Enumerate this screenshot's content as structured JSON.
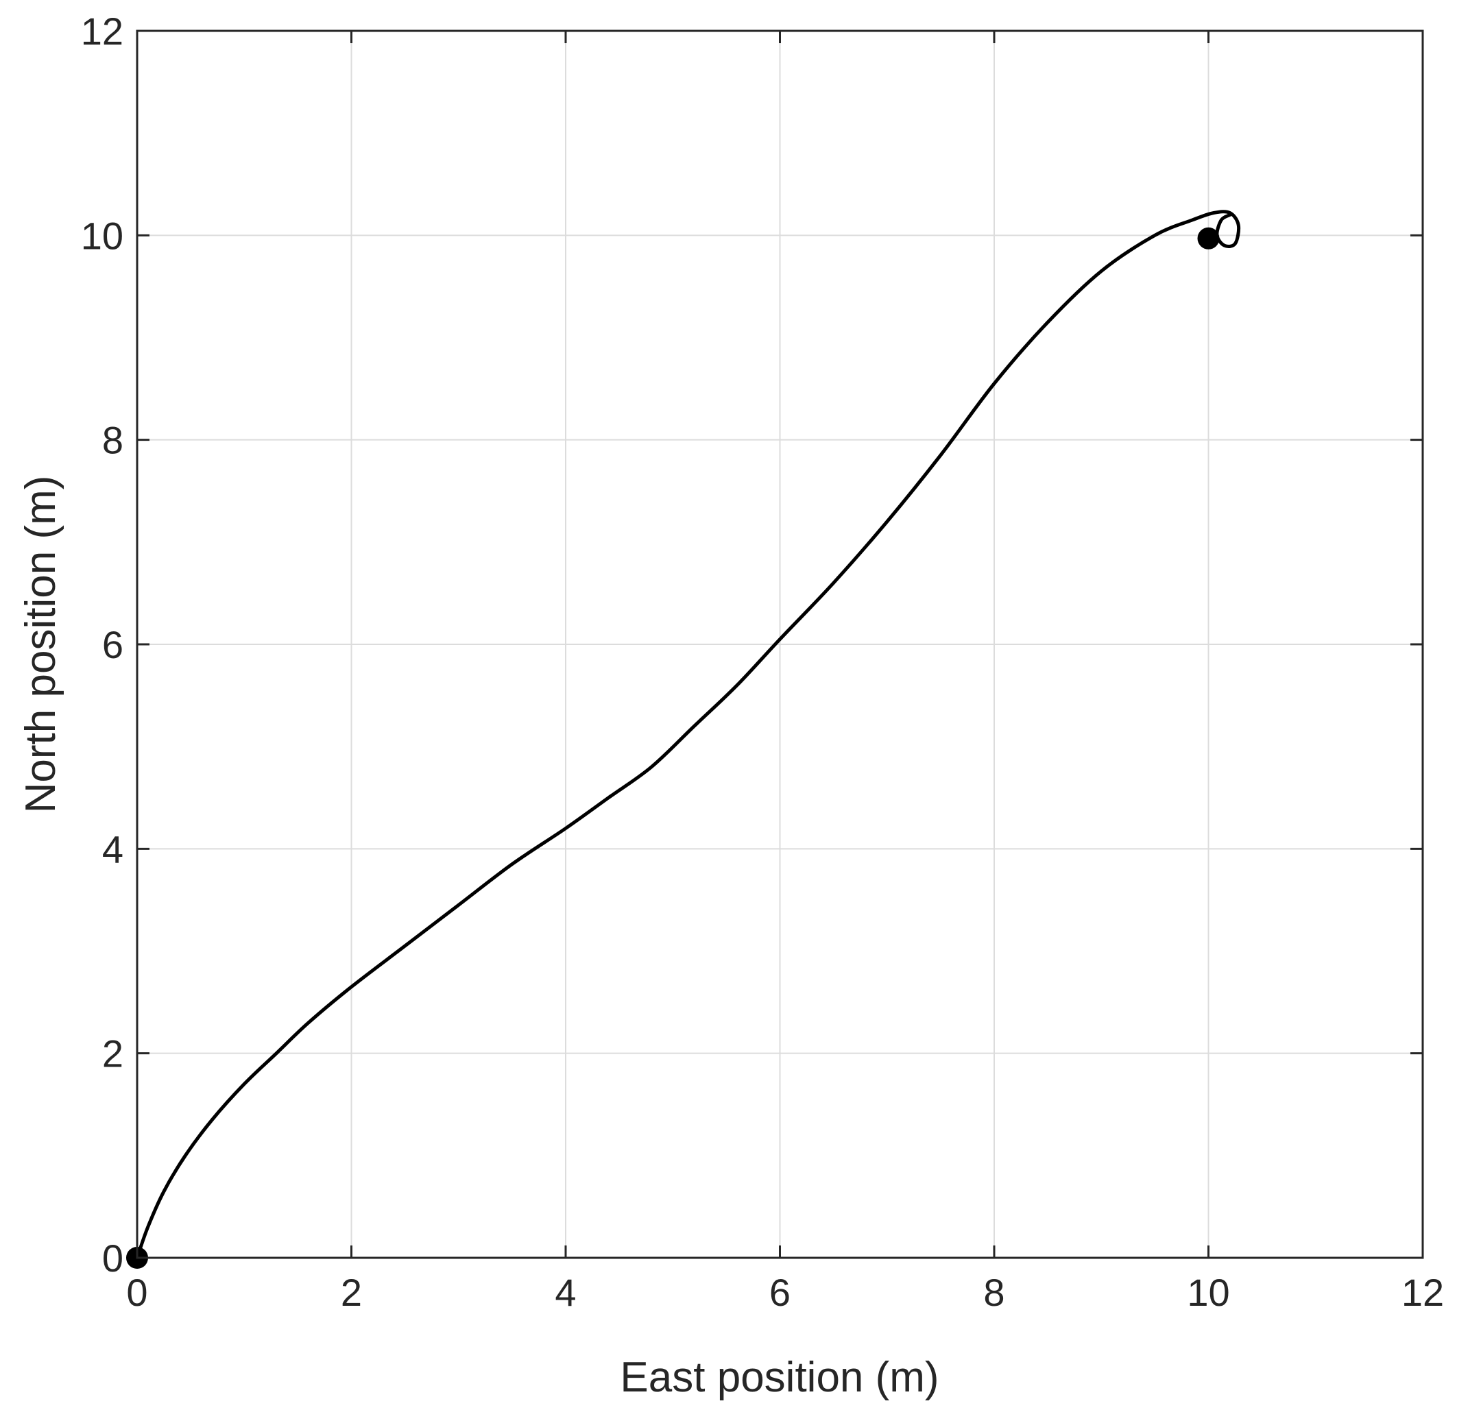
{
  "chart_data": {
    "type": "line",
    "title": "",
    "xlabel": "East position (m)",
    "ylabel": "North position (m)",
    "xlim": [
      0,
      12
    ],
    "ylim": [
      0,
      12
    ],
    "xticks": [
      0,
      2,
      4,
      6,
      8,
      10,
      12
    ],
    "yticks": [
      0,
      2,
      4,
      6,
      8,
      10,
      12
    ],
    "grid": true,
    "legend": "none",
    "series": [
      {
        "color": "#000000",
        "x": [
          0,
          0.1,
          0.25,
          0.45,
          0.7,
          1.0,
          1.3,
          1.6,
          2.0,
          2.5,
          3.0,
          3.5,
          4.0,
          4.4,
          4.8,
          5.2,
          5.6,
          6.0,
          6.5,
          7.0,
          7.5,
          8.0,
          8.5,
          9.0,
          9.5,
          9.85,
          10.05,
          10.2,
          10.28,
          10.25,
          10.15,
          10.08,
          10.12,
          10.2
        ],
        "y": [
          0,
          0.3,
          0.65,
          1.0,
          1.35,
          1.7,
          2.0,
          2.3,
          2.65,
          3.05,
          3.45,
          3.85,
          4.2,
          4.5,
          4.8,
          5.2,
          5.6,
          6.05,
          6.6,
          7.2,
          7.85,
          8.55,
          9.15,
          9.65,
          10.0,
          10.15,
          10.22,
          10.22,
          10.1,
          9.92,
          9.9,
          10.0,
          10.15,
          10.2
        ]
      }
    ],
    "markers": [
      {
        "x": 0,
        "y": 0,
        "color": "#000000"
      },
      {
        "x": 10,
        "y": 9.97,
        "color": "#000000"
      }
    ]
  }
}
